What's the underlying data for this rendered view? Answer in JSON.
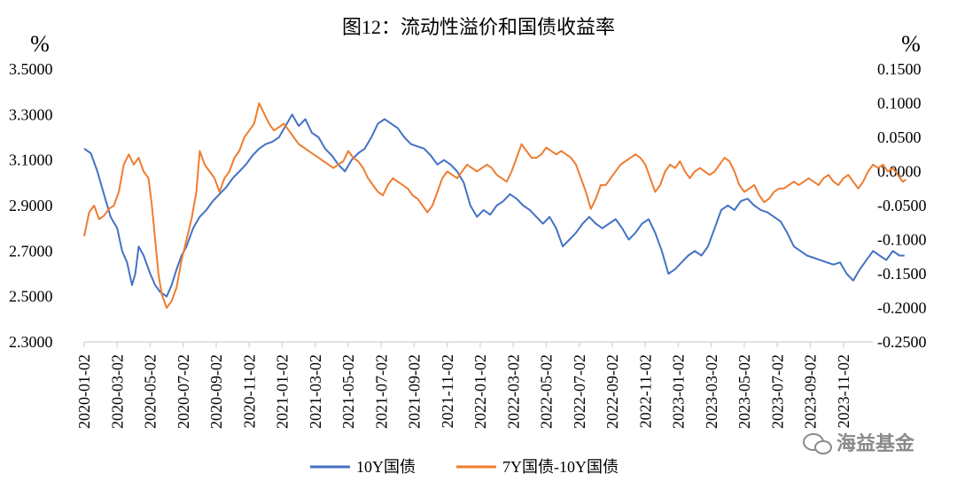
{
  "chart_data": {
    "type": "line",
    "title": "图12：流动性溢价和国债收益率",
    "left_axis": {
      "unit": "%",
      "range": [
        2.3,
        3.5
      ],
      "ticks": [
        "3.5000",
        "3.3000",
        "3.1000",
        "2.9000",
        "2.7000",
        "2.5000",
        "2.3000"
      ],
      "tick_values": [
        3.5,
        3.3,
        3.1,
        2.9,
        2.7,
        2.5,
        2.3
      ]
    },
    "right_axis": {
      "unit": "%",
      "range": [
        -0.25,
        0.15
      ],
      "ticks": [
        "0.1500",
        "0.1000",
        "0.0500",
        "0.0000",
        "-0.0500",
        "-0.1000",
        "-0.1500",
        "-0.2000",
        "-0.2500"
      ],
      "tick_values": [
        0.15,
        0.1,
        0.05,
        0.0,
        -0.05,
        -0.1,
        -0.15,
        -0.2,
        -0.25
      ]
    },
    "x_axis": {
      "range_months": [
        0,
        48
      ],
      "ticks": [
        "2020-01-02",
        "2020-03-02",
        "2020-05-02",
        "2020-07-02",
        "2020-09-02",
        "2020-11-02",
        "2021-01-02",
        "2021-03-02",
        "2021-05-02",
        "2021-07-02",
        "2021-09-02",
        "2021-11-02",
        "2022-01-02",
        "2022-03-02",
        "2022-05-02",
        "2022-07-02",
        "2022-09-02",
        "2022-11-02",
        "2023-01-02",
        "2023-03-02",
        "2023-05-02",
        "2023-07-02",
        "2023-09-02",
        "2023-11-02"
      ]
    },
    "series": [
      {
        "name": "10Y国债",
        "axis": "left",
        "color": "#4472C4",
        "points": [
          [
            0,
            3.15
          ],
          [
            0.4,
            3.13
          ],
          [
            0.8,
            3.05
          ],
          [
            1.2,
            2.95
          ],
          [
            1.6,
            2.85
          ],
          [
            2.0,
            2.8
          ],
          [
            2.3,
            2.7
          ],
          [
            2.6,
            2.65
          ],
          [
            2.9,
            2.55
          ],
          [
            3.1,
            2.6
          ],
          [
            3.3,
            2.72
          ],
          [
            3.6,
            2.68
          ],
          [
            4.0,
            2.6
          ],
          [
            4.3,
            2.55
          ],
          [
            4.6,
            2.52
          ],
          [
            5.0,
            2.5
          ],
          [
            5.3,
            2.55
          ],
          [
            5.6,
            2.62
          ],
          [
            5.9,
            2.68
          ],
          [
            6.2,
            2.72
          ],
          [
            6.6,
            2.8
          ],
          [
            7.0,
            2.85
          ],
          [
            7.4,
            2.88
          ],
          [
            7.8,
            2.92
          ],
          [
            8.2,
            2.95
          ],
          [
            8.6,
            2.98
          ],
          [
            9.0,
            3.02
          ],
          [
            9.4,
            3.05
          ],
          [
            9.8,
            3.08
          ],
          [
            10.2,
            3.12
          ],
          [
            10.6,
            3.15
          ],
          [
            11.0,
            3.17
          ],
          [
            11.4,
            3.18
          ],
          [
            11.8,
            3.2
          ],
          [
            12.2,
            3.25
          ],
          [
            12.6,
            3.3
          ],
          [
            13.0,
            3.25
          ],
          [
            13.4,
            3.28
          ],
          [
            13.8,
            3.22
          ],
          [
            14.2,
            3.2
          ],
          [
            14.6,
            3.15
          ],
          [
            15.0,
            3.12
          ],
          [
            15.4,
            3.08
          ],
          [
            15.8,
            3.05
          ],
          [
            16.2,
            3.1
          ],
          [
            16.6,
            3.13
          ],
          [
            17.0,
            3.15
          ],
          [
            17.4,
            3.2
          ],
          [
            17.8,
            3.26
          ],
          [
            18.2,
            3.28
          ],
          [
            18.6,
            3.26
          ],
          [
            19.0,
            3.24
          ],
          [
            19.4,
            3.2
          ],
          [
            19.8,
            3.17
          ],
          [
            20.2,
            3.16
          ],
          [
            20.6,
            3.15
          ],
          [
            21.0,
            3.12
          ],
          [
            21.4,
            3.08
          ],
          [
            21.8,
            3.1
          ],
          [
            22.2,
            3.08
          ],
          [
            22.6,
            3.05
          ],
          [
            23.0,
            3.0
          ],
          [
            23.4,
            2.9
          ],
          [
            23.8,
            2.85
          ],
          [
            24.2,
            2.88
          ],
          [
            24.6,
            2.86
          ],
          [
            25.0,
            2.9
          ],
          [
            25.4,
            2.92
          ],
          [
            25.8,
            2.95
          ],
          [
            26.2,
            2.93
          ],
          [
            26.6,
            2.9
          ],
          [
            27.0,
            2.88
          ],
          [
            27.4,
            2.85
          ],
          [
            27.8,
            2.82
          ],
          [
            28.2,
            2.85
          ],
          [
            28.6,
            2.8
          ],
          [
            29.0,
            2.72
          ],
          [
            29.4,
            2.75
          ],
          [
            29.8,
            2.78
          ],
          [
            30.2,
            2.82
          ],
          [
            30.6,
            2.85
          ],
          [
            31.0,
            2.82
          ],
          [
            31.4,
            2.8
          ],
          [
            31.8,
            2.82
          ],
          [
            32.2,
            2.84
          ],
          [
            32.6,
            2.8
          ],
          [
            33.0,
            2.75
          ],
          [
            33.4,
            2.78
          ],
          [
            33.8,
            2.82
          ],
          [
            34.2,
            2.84
          ],
          [
            34.6,
            2.78
          ],
          [
            35.0,
            2.7
          ],
          [
            35.4,
            2.6
          ],
          [
            35.8,
            2.62
          ],
          [
            36.2,
            2.65
          ],
          [
            36.6,
            2.68
          ],
          [
            37.0,
            2.7
          ],
          [
            37.4,
            2.68
          ],
          [
            37.8,
            2.72
          ],
          [
            38.2,
            2.8
          ],
          [
            38.6,
            2.88
          ],
          [
            39.0,
            2.9
          ],
          [
            39.4,
            2.88
          ],
          [
            39.8,
            2.92
          ],
          [
            40.2,
            2.93
          ],
          [
            40.6,
            2.9
          ],
          [
            41.0,
            2.88
          ],
          [
            41.4,
            2.87
          ],
          [
            41.8,
            2.85
          ],
          [
            42.2,
            2.83
          ],
          [
            42.6,
            2.78
          ],
          [
            43.0,
            2.72
          ],
          [
            43.4,
            2.7
          ],
          [
            43.8,
            2.68
          ],
          [
            44.2,
            2.67
          ],
          [
            44.6,
            2.66
          ],
          [
            45.0,
            2.65
          ],
          [
            45.4,
            2.64
          ],
          [
            45.8,
            2.65
          ],
          [
            46.2,
            2.6
          ],
          [
            46.6,
            2.57
          ],
          [
            47.0,
            2.62
          ],
          [
            47.4,
            2.66
          ],
          [
            47.8,
            2.7
          ],
          [
            48.2,
            2.68
          ],
          [
            48.6,
            2.66
          ],
          [
            49.0,
            2.7
          ],
          [
            49.4,
            2.68
          ],
          [
            49.7,
            2.68
          ]
        ]
      },
      {
        "name": "7Y国债-10Y国债",
        "axis": "right",
        "color": "#ED7D31",
        "points": [
          [
            0,
            -0.095
          ],
          [
            0.3,
            -0.06
          ],
          [
            0.6,
            -0.05
          ],
          [
            0.9,
            -0.07
          ],
          [
            1.2,
            -0.065
          ],
          [
            1.5,
            -0.055
          ],
          [
            1.8,
            -0.05
          ],
          [
            2.1,
            -0.03
          ],
          [
            2.4,
            0.01
          ],
          [
            2.7,
            0.025
          ],
          [
            3.0,
            0.01
          ],
          [
            3.3,
            0.02
          ],
          [
            3.6,
            0.0
          ],
          [
            3.9,
            -0.01
          ],
          [
            4.1,
            -0.05
          ],
          [
            4.3,
            -0.1
          ],
          [
            4.5,
            -0.15
          ],
          [
            4.7,
            -0.18
          ],
          [
            5.0,
            -0.2
          ],
          [
            5.3,
            -0.19
          ],
          [
            5.6,
            -0.17
          ],
          [
            5.9,
            -0.13
          ],
          [
            6.2,
            -0.1
          ],
          [
            6.5,
            -0.07
          ],
          [
            6.8,
            -0.03
          ],
          [
            7.0,
            0.03
          ],
          [
            7.3,
            0.01
          ],
          [
            7.6,
            0.0
          ],
          [
            7.9,
            -0.01
          ],
          [
            8.2,
            -0.03
          ],
          [
            8.5,
            -0.01
          ],
          [
            8.8,
            0.0
          ],
          [
            9.1,
            0.02
          ],
          [
            9.4,
            0.03
          ],
          [
            9.7,
            0.05
          ],
          [
            10.0,
            0.06
          ],
          [
            10.3,
            0.07
          ],
          [
            10.6,
            0.1
          ],
          [
            10.9,
            0.085
          ],
          [
            11.2,
            0.07
          ],
          [
            11.5,
            0.06
          ],
          [
            11.8,
            0.065
          ],
          [
            12.1,
            0.07
          ],
          [
            12.4,
            0.06
          ],
          [
            12.7,
            0.05
          ],
          [
            13.0,
            0.04
          ],
          [
            13.3,
            0.035
          ],
          [
            13.6,
            0.03
          ],
          [
            13.9,
            0.025
          ],
          [
            14.2,
            0.02
          ],
          [
            14.5,
            0.015
          ],
          [
            14.8,
            0.01
          ],
          [
            15.1,
            0.005
          ],
          [
            15.4,
            0.01
          ],
          [
            15.7,
            0.015
          ],
          [
            16.0,
            0.03
          ],
          [
            16.3,
            0.02
          ],
          [
            16.6,
            0.015
          ],
          [
            16.9,
            0.005
          ],
          [
            17.2,
            -0.01
          ],
          [
            17.5,
            -0.02
          ],
          [
            17.8,
            -0.03
          ],
          [
            18.1,
            -0.035
          ],
          [
            18.4,
            -0.02
          ],
          [
            18.7,
            -0.01
          ],
          [
            19.0,
            -0.015
          ],
          [
            19.3,
            -0.02
          ],
          [
            19.6,
            -0.025
          ],
          [
            19.9,
            -0.035
          ],
          [
            20.2,
            -0.04
          ],
          [
            20.5,
            -0.05
          ],
          [
            20.8,
            -0.06
          ],
          [
            21.1,
            -0.05
          ],
          [
            21.4,
            -0.03
          ],
          [
            21.7,
            -0.01
          ],
          [
            22.0,
            0.0
          ],
          [
            22.3,
            -0.005
          ],
          [
            22.6,
            -0.01
          ],
          [
            22.9,
            0.0
          ],
          [
            23.2,
            0.01
          ],
          [
            23.5,
            0.005
          ],
          [
            23.8,
            0.0
          ],
          [
            24.1,
            0.005
          ],
          [
            24.4,
            0.01
          ],
          [
            24.7,
            0.005
          ],
          [
            25.0,
            -0.005
          ],
          [
            25.3,
            -0.01
          ],
          [
            25.6,
            -0.015
          ],
          [
            25.9,
            0.0
          ],
          [
            26.2,
            0.02
          ],
          [
            26.5,
            0.04
          ],
          [
            26.8,
            0.03
          ],
          [
            27.1,
            0.02
          ],
          [
            27.4,
            0.02
          ],
          [
            27.7,
            0.025
          ],
          [
            28.0,
            0.035
          ],
          [
            28.3,
            0.03
          ],
          [
            28.6,
            0.025
          ],
          [
            28.9,
            0.03
          ],
          [
            29.2,
            0.025
          ],
          [
            29.5,
            0.02
          ],
          [
            29.8,
            0.01
          ],
          [
            30.1,
            -0.01
          ],
          [
            30.4,
            -0.03
          ],
          [
            30.7,
            -0.055
          ],
          [
            31.0,
            -0.04
          ],
          [
            31.3,
            -0.02
          ],
          [
            31.6,
            -0.02
          ],
          [
            31.9,
            -0.01
          ],
          [
            32.2,
            0.0
          ],
          [
            32.5,
            0.01
          ],
          [
            32.8,
            0.015
          ],
          [
            33.1,
            0.02
          ],
          [
            33.4,
            0.025
          ],
          [
            33.7,
            0.02
          ],
          [
            34.0,
            0.01
          ],
          [
            34.3,
            -0.01
          ],
          [
            34.6,
            -0.03
          ],
          [
            34.9,
            -0.02
          ],
          [
            35.2,
            0.0
          ],
          [
            35.5,
            0.01
          ],
          [
            35.8,
            0.005
          ],
          [
            36.1,
            0.015
          ],
          [
            36.4,
            0.0
          ],
          [
            36.7,
            -0.01
          ],
          [
            37.0,
            0.0
          ],
          [
            37.3,
            0.005
          ],
          [
            37.6,
            0.0
          ],
          [
            37.9,
            -0.005
          ],
          [
            38.2,
            0.0
          ],
          [
            38.5,
            0.01
          ],
          [
            38.8,
            0.02
          ],
          [
            39.1,
            0.015
          ],
          [
            39.4,
            0.0
          ],
          [
            39.7,
            -0.02
          ],
          [
            40.0,
            -0.03
          ],
          [
            40.3,
            -0.025
          ],
          [
            40.6,
            -0.02
          ],
          [
            40.9,
            -0.035
          ],
          [
            41.2,
            -0.045
          ],
          [
            41.5,
            -0.04
          ],
          [
            41.8,
            -0.03
          ],
          [
            42.1,
            -0.025
          ],
          [
            42.4,
            -0.025
          ],
          [
            42.7,
            -0.02
          ],
          [
            43.0,
            -0.015
          ],
          [
            43.3,
            -0.02
          ],
          [
            43.6,
            -0.015
          ],
          [
            43.9,
            -0.01
          ],
          [
            44.2,
            -0.015
          ],
          [
            44.5,
            -0.02
          ],
          [
            44.8,
            -0.01
          ],
          [
            45.1,
            -0.005
          ],
          [
            45.4,
            -0.015
          ],
          [
            45.7,
            -0.02
          ],
          [
            46.0,
            -0.01
          ],
          [
            46.3,
            -0.005
          ],
          [
            46.6,
            -0.015
          ],
          [
            46.9,
            -0.025
          ],
          [
            47.2,
            -0.015
          ],
          [
            47.5,
            0.0
          ],
          [
            47.8,
            0.01
          ],
          [
            48.1,
            0.005
          ],
          [
            48.4,
            0.01
          ],
          [
            48.7,
            0.0
          ],
          [
            49.0,
            0.005
          ],
          [
            49.3,
            -0.005
          ],
          [
            49.6,
            -0.015
          ],
          [
            49.8,
            -0.012
          ]
        ]
      }
    ],
    "legend": {
      "position": "bottom",
      "items": [
        "10Y国债",
        "7Y国债-10Y国债"
      ]
    }
  },
  "watermark": {
    "text": "海益基金",
    "icon": "chat-bubble-icon"
  }
}
